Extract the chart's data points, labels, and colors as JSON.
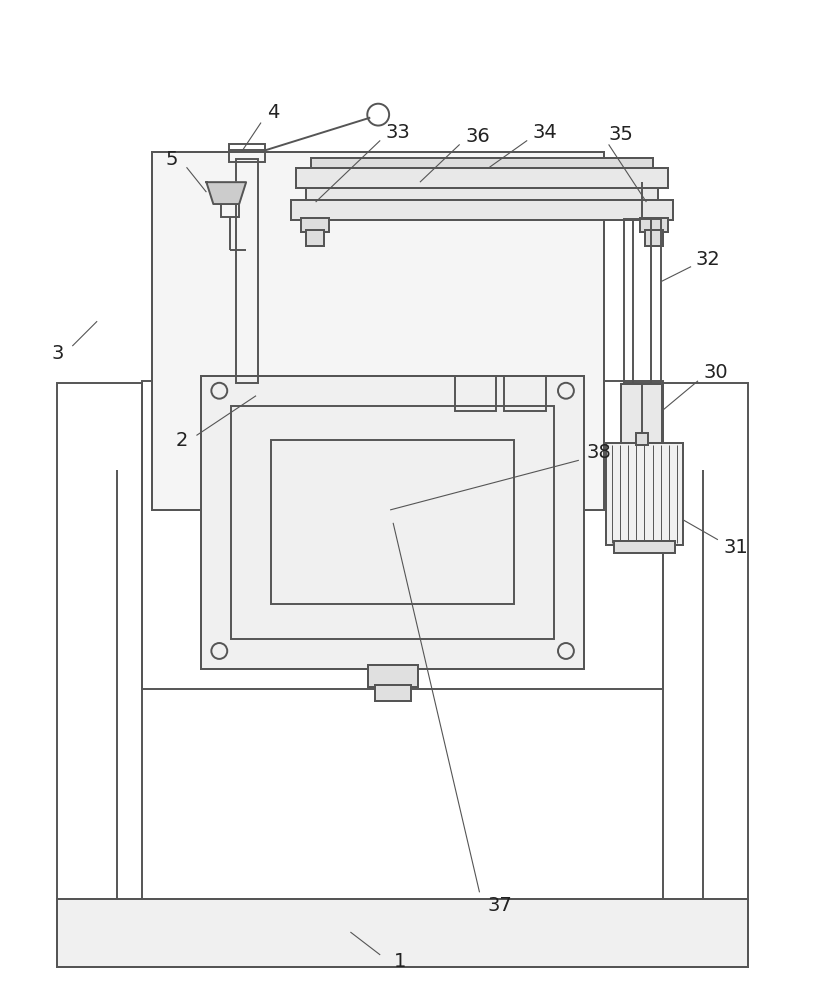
{
  "bg_color": "#ffffff",
  "line_color": "#555555",
  "lw": 1.4,
  "fig_width": 8.19,
  "fig_height": 10.0
}
